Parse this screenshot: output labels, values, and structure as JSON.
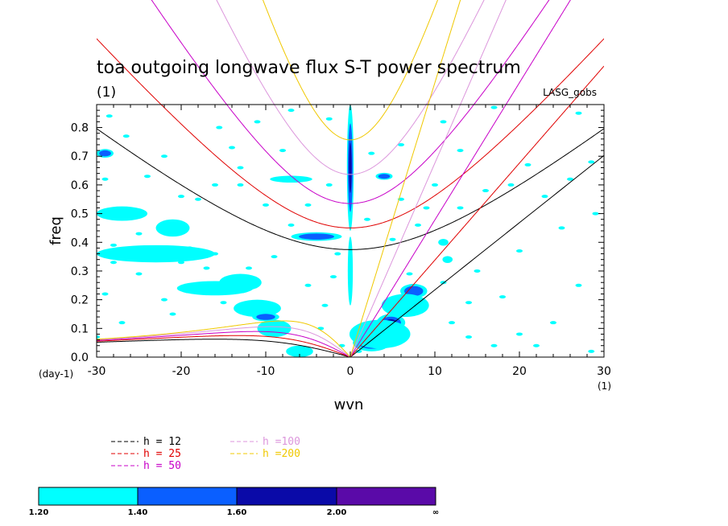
{
  "chart_data": {
    "type": "heatmap",
    "title": "toa outgoing longwave flux S-T power spectrum",
    "subtitle_left": "(1)",
    "subtitle_right": "LASG_gobs",
    "xlabel": "wvn",
    "ylabel": "freq",
    "x_units_label": "(1)",
    "y_units_label": "(day-1)",
    "xlim": [
      -30,
      30
    ],
    "ylim": [
      0,
      0.88
    ],
    "x_ticks": [
      -30,
      -20,
      -10,
      0,
      10,
      20,
      30
    ],
    "x_tick_labels": [
      "-30",
      "-20",
      "-10",
      "0",
      "10",
      "20",
      "30"
    ],
    "y_ticks": [
      0,
      0.1,
      0.2,
      0.3,
      0.4,
      0.5,
      0.6,
      0.7,
      0.8
    ],
    "y_tick_labels": [
      "0.0",
      "0.1",
      "0.2",
      "0.3",
      "0.4",
      "0.5",
      "0.6",
      "0.7",
      "0.8"
    ],
    "grid": false,
    "contour_levels": {
      "bounds": [
        "1.20",
        "1.40",
        "1.60",
        "2.00",
        "∞"
      ],
      "colors": [
        "#00ffff",
        "#0a5fff",
        "#0a0aa8",
        "#5a0aa8"
      ]
    },
    "dispersion_curves": [
      {
        "name": "h = 12",
        "color": "#000000",
        "equivalent_depth": 12
      },
      {
        "name": "h = 25",
        "color": "#e00000",
        "equivalent_depth": 25
      },
      {
        "name": "h = 50",
        "color": "#c800c8",
        "equivalent_depth": 50
      },
      {
        "name": "h =100",
        "color": "#dc96dc",
        "equivalent_depth": 100
      },
      {
        "name": "h =200",
        "color": "#f0c800",
        "equivalent_depth": 200
      }
    ],
    "power_regions": [
      {
        "x": 0,
        "y": 0.66,
        "rx": 0.4,
        "ry": 0.22,
        "level": 3
      },
      {
        "x": 0,
        "y": 0.3,
        "rx": 0.3,
        "ry": 0.12,
        "level": 1
      },
      {
        "x": 2.5,
        "y": 0.05,
        "rx": 2.2,
        "ry": 0.03,
        "level": 3
      },
      {
        "x": 4.8,
        "y": 0.12,
        "rx": 1.7,
        "ry": 0.03,
        "level": 3
      },
      {
        "x": 7.5,
        "y": 0.23,
        "rx": 1.6,
        "ry": 0.025,
        "level": 2
      },
      {
        "x": 3.5,
        "y": 0.08,
        "rx": 3.6,
        "ry": 0.05,
        "level": 1
      },
      {
        "x": 6.5,
        "y": 0.18,
        "rx": 2.8,
        "ry": 0.04,
        "level": 1
      },
      {
        "x": -11,
        "y": 0.17,
        "rx": 2.8,
        "ry": 0.03,
        "level": 1
      },
      {
        "x": -10,
        "y": 0.14,
        "rx": 1.6,
        "ry": 0.015,
        "level": 2
      },
      {
        "x": -9,
        "y": 0.1,
        "rx": 2.0,
        "ry": 0.03,
        "level": 1
      },
      {
        "x": -6,
        "y": 0.02,
        "rx": 1.6,
        "ry": 0.02,
        "level": 1
      },
      {
        "x": -4,
        "y": 0.42,
        "rx": 3.0,
        "ry": 0.015,
        "level": 2
      },
      {
        "x": -7,
        "y": 0.62,
        "rx": 2.5,
        "ry": 0.012,
        "level": 1
      },
      {
        "x": -23,
        "y": 0.36,
        "rx": 7.0,
        "ry": 0.03,
        "level": 1
      },
      {
        "x": -16,
        "y": 0.24,
        "rx": 4.5,
        "ry": 0.025,
        "level": 1
      },
      {
        "x": -13,
        "y": 0.26,
        "rx": 2.5,
        "ry": 0.03,
        "level": 1
      },
      {
        "x": -27,
        "y": 0.5,
        "rx": 3.0,
        "ry": 0.025,
        "level": 1
      },
      {
        "x": -21,
        "y": 0.45,
        "rx": 2.0,
        "ry": 0.03,
        "level": 1
      },
      {
        "x": -29,
        "y": 0.71,
        "rx": 1.0,
        "ry": 0.015,
        "level": 2
      },
      {
        "x": 4,
        "y": 0.63,
        "rx": 1.0,
        "ry": 0.012,
        "level": 2
      },
      {
        "x": 11,
        "y": 0.4,
        "rx": 0.6,
        "ry": 0.012,
        "level": 1
      },
      {
        "x": 11.5,
        "y": 0.34,
        "rx": 0.6,
        "ry": 0.012,
        "level": 1
      }
    ],
    "power_specks": [
      [
        -28.5,
        0.84
      ],
      [
        -26.5,
        0.77
      ],
      [
        -24,
        0.63
      ],
      [
        -22,
        0.7
      ],
      [
        -20,
        0.56
      ],
      [
        -18,
        0.55
      ],
      [
        -16,
        0.6
      ],
      [
        -14,
        0.73
      ],
      [
        -13,
        0.66
      ],
      [
        -19,
        0.38
      ],
      [
        -25,
        0.29
      ],
      [
        -28,
        0.33
      ],
      [
        -20,
        0.33
      ],
      [
        -17,
        0.31
      ],
      [
        -12,
        0.31
      ],
      [
        -9,
        0.35
      ],
      [
        -7,
        0.46
      ],
      [
        -5,
        0.53
      ],
      [
        -2.5,
        0.6
      ],
      [
        -10,
        0.53
      ],
      [
        -13,
        0.6
      ],
      [
        -7,
        0.86
      ],
      [
        -15.5,
        0.8
      ],
      [
        -11,
        0.82
      ],
      [
        -22,
        0.2
      ],
      [
        -15,
        0.19
      ],
      [
        -5,
        0.25
      ],
      [
        -3,
        0.18
      ],
      [
        -3.5,
        0.1
      ],
      [
        -2,
        0.28
      ],
      [
        -1.5,
        0.36
      ],
      [
        2,
        0.48
      ],
      [
        6,
        0.55
      ],
      [
        9,
        0.52
      ],
      [
        13,
        0.52
      ],
      [
        16,
        0.58
      ],
      [
        19,
        0.6
      ],
      [
        21,
        0.67
      ],
      [
        23,
        0.56
      ],
      [
        26,
        0.62
      ],
      [
        28.5,
        0.68
      ],
      [
        29,
        0.5
      ],
      [
        25,
        0.45
      ],
      [
        27,
        0.25
      ],
      [
        24,
        0.12
      ],
      [
        20,
        0.08
      ],
      [
        17,
        0.04
      ],
      [
        22,
        0.04
      ],
      [
        28.5,
        0.02
      ],
      [
        14,
        0.07
      ],
      [
        12,
        0.12
      ],
      [
        11,
        0.26
      ],
      [
        15,
        0.3
      ],
      [
        10,
        0.6
      ],
      [
        13,
        0.72
      ],
      [
        11,
        0.82
      ],
      [
        6,
        0.74
      ],
      [
        2.5,
        0.71
      ],
      [
        5,
        0.41
      ],
      [
        8,
        0.46
      ],
      [
        -8,
        0.72
      ],
      [
        -16,
        0.36
      ],
      [
        -21,
        0.15
      ],
      [
        -27,
        0.12
      ],
      [
        -29,
        0.22
      ],
      [
        -28,
        0.39
      ],
      [
        -25,
        0.43
      ],
      [
        -29,
        0.62
      ],
      [
        -30,
        0.07
      ],
      [
        7,
        0.29
      ],
      [
        14,
        0.19
      ],
      [
        18,
        0.21
      ],
      [
        -1,
        0.04
      ],
      [
        1,
        0.02
      ],
      [
        -2.5,
        0.83
      ],
      [
        17,
        0.87
      ],
      [
        27,
        0.85
      ],
      [
        20,
        0.37
      ]
    ]
  },
  "legend": {
    "items": [
      {
        "label": "h = 12",
        "color": "#000000"
      },
      {
        "label": "h = 25",
        "color": "#e00000"
      },
      {
        "label": "h = 50",
        "color": "#c800c8"
      },
      {
        "label": "h =100",
        "color": "#dc96dc"
      },
      {
        "label": "h =200",
        "color": "#f0c800"
      }
    ]
  }
}
